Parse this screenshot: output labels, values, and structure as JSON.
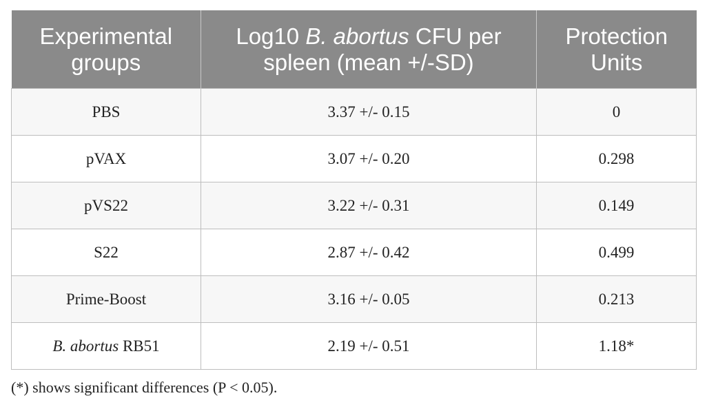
{
  "table": {
    "headers": {
      "col1": "Experimental groups",
      "col2_prefix": "Log10 ",
      "col2_italic": "B. abortus",
      "col2_suffix": " CFU per spleen (mean +/-SD)",
      "col3": "Protection Units"
    },
    "rows": [
      {
        "group": "PBS",
        "group_italic": "",
        "cfu": "3.37 +/- 0.15",
        "protection": "0"
      },
      {
        "group": "pVAX",
        "group_italic": "",
        "cfu": "3.07 +/- 0.20",
        "protection": "0.298"
      },
      {
        "group": "pVS22",
        "group_italic": "",
        "cfu": "3.22 +/- 0.31",
        "protection": "0.149"
      },
      {
        "group": "S22",
        "group_italic": "",
        "cfu": "2.87 +/- 0.42",
        "protection": "0.499"
      },
      {
        "group": "Prime-Boost",
        "group_italic": "",
        "cfu": "3.16 +/- 0.05",
        "protection": "0.213"
      },
      {
        "group": " RB51",
        "group_italic": "B. abortus",
        "cfu": "2.19 +/- 0.51",
        "protection": "1.18*"
      }
    ]
  },
  "footnote": "(*) shows significant differences (P < 0.05)."
}
